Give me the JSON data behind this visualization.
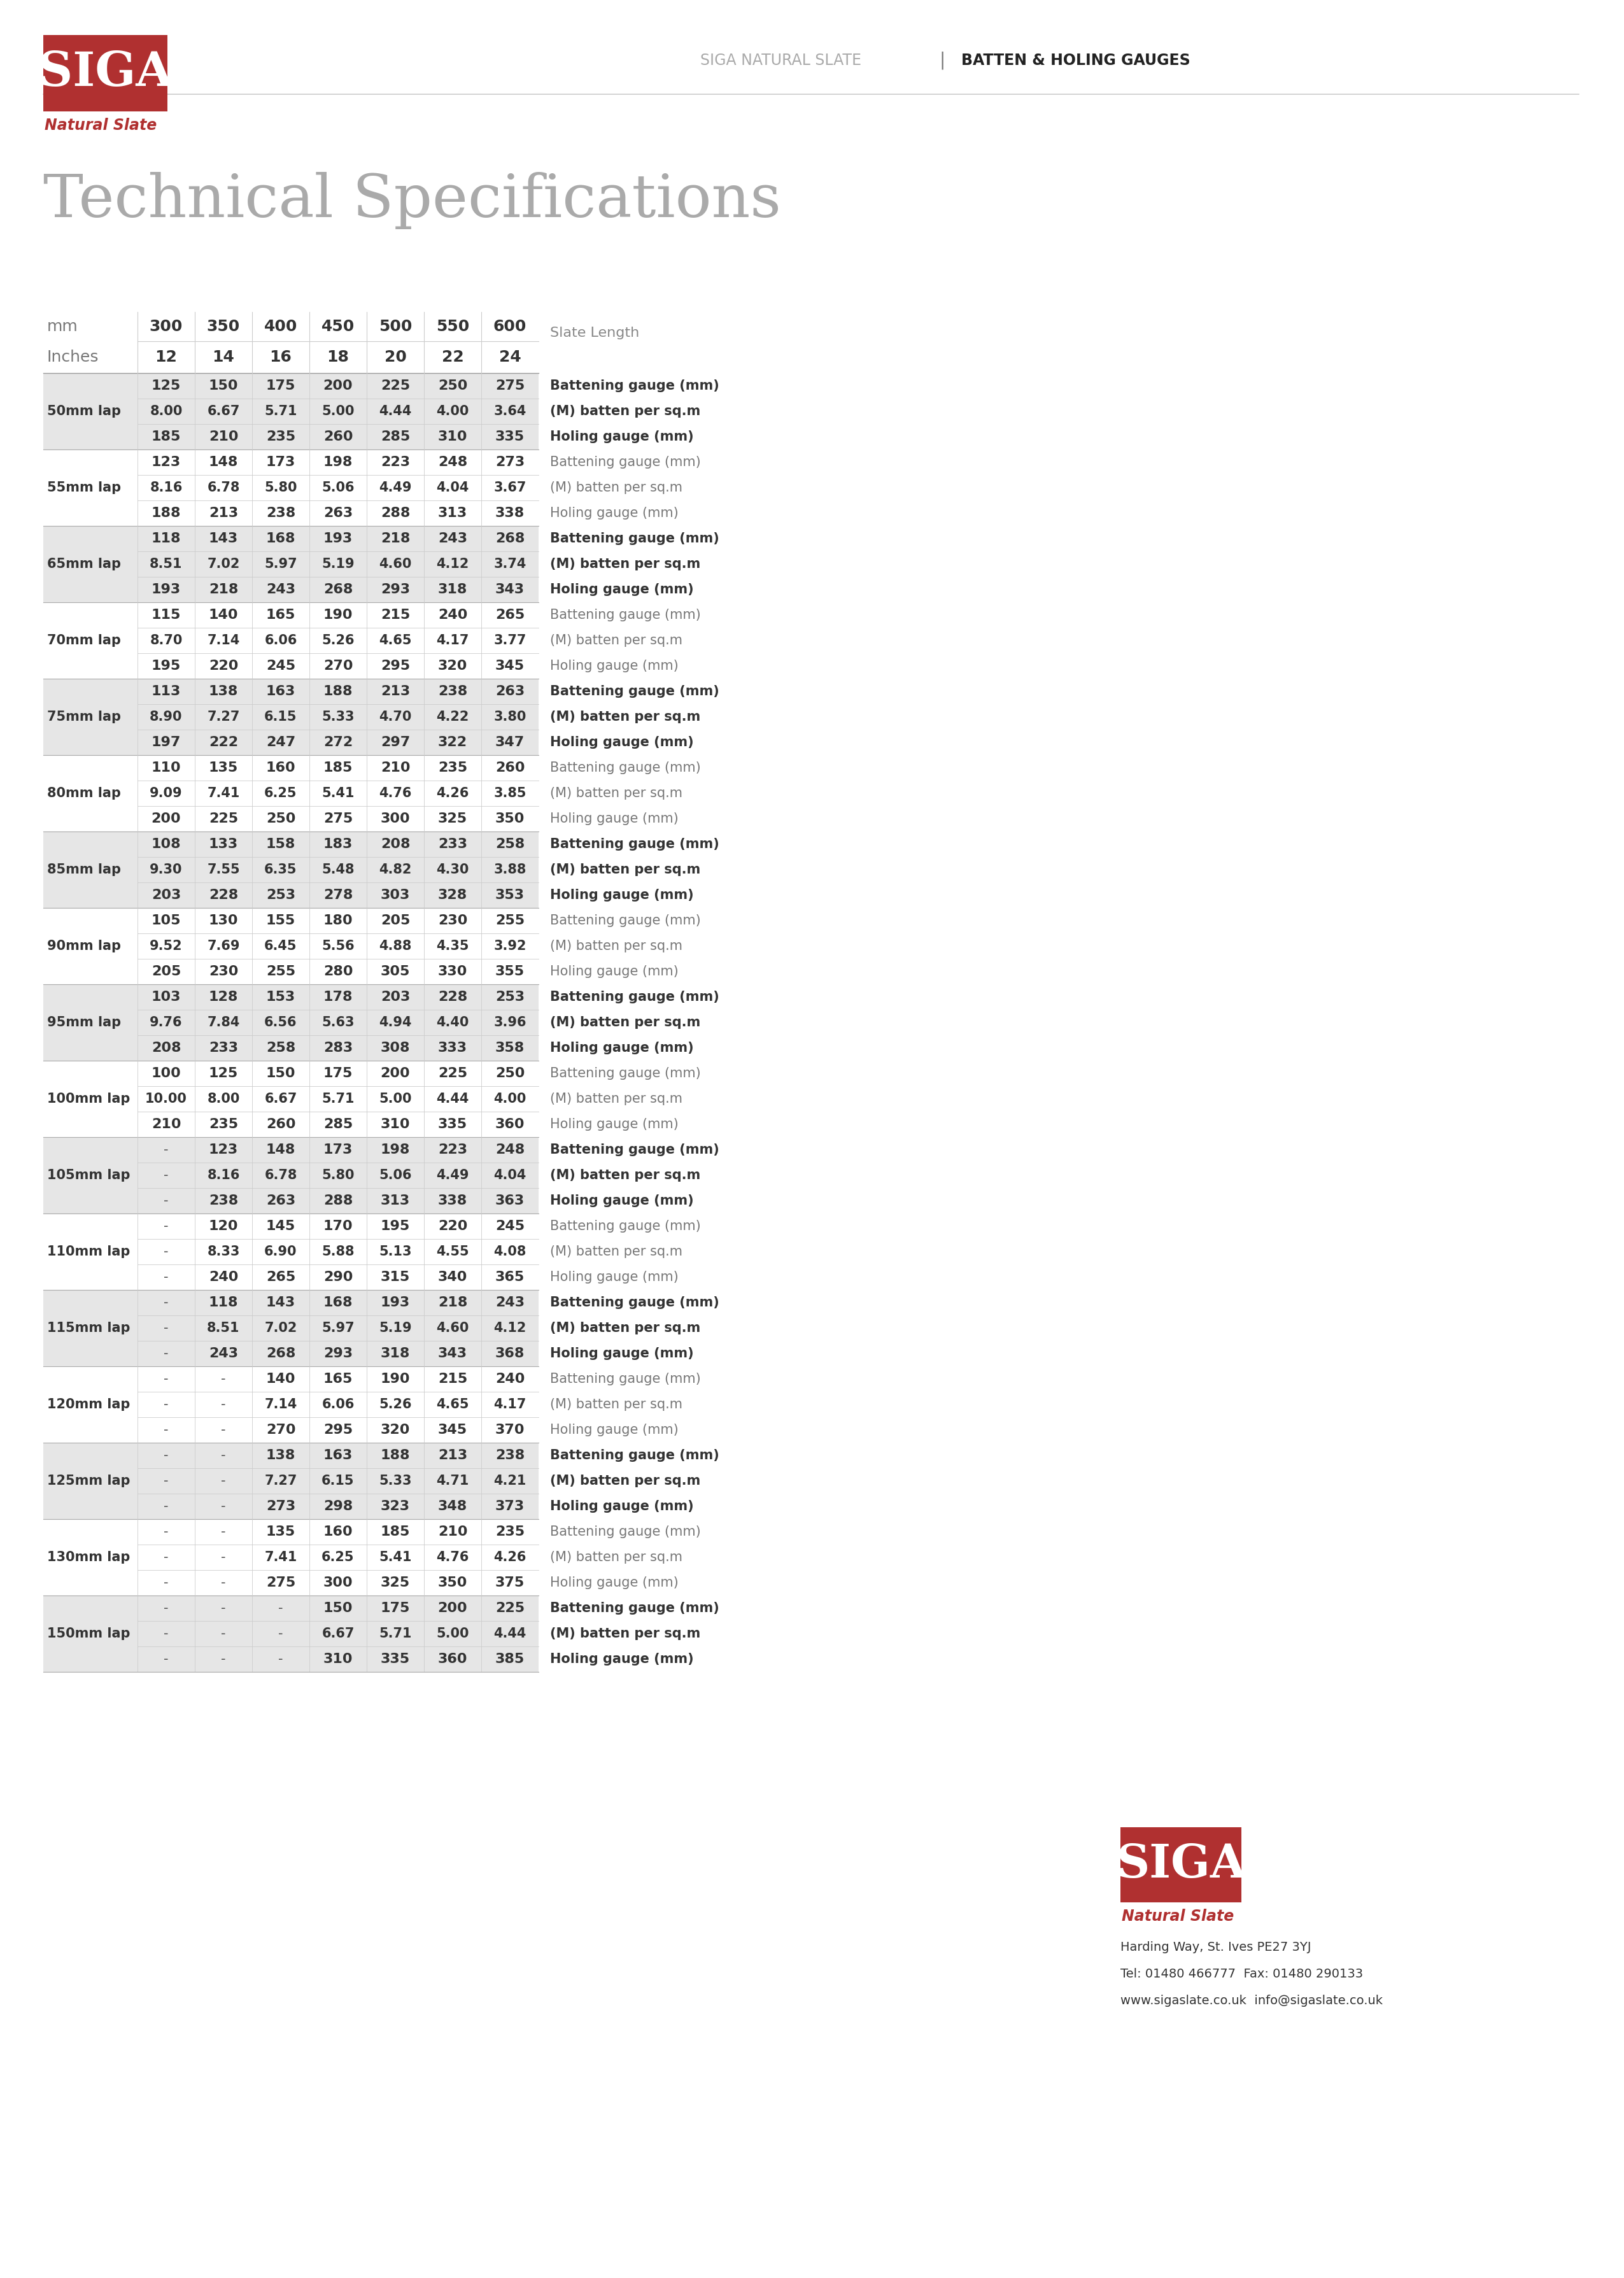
{
  "title": "Technical Specifications",
  "laps": [
    {
      "label": "50mm lap",
      "rows": [
        [
          "",
          "125",
          "150",
          "175",
          "200",
          "225",
          "250",
          "275",
          "Battening gauge (mm)"
        ],
        [
          "50mm lap",
          "8.00",
          "6.67",
          "5.71",
          "5.00",
          "4.44",
          "4.00",
          "3.64",
          "(M) batten per sq.m"
        ],
        [
          "",
          "185",
          "210",
          "235",
          "260",
          "285",
          "310",
          "335",
          "Holing gauge (mm)"
        ]
      ],
      "shaded": true
    },
    {
      "label": "55mm lap",
      "rows": [
        [
          "",
          "123",
          "148",
          "173",
          "198",
          "223",
          "248",
          "273",
          "Battening gauge (mm)"
        ],
        [
          "55mm lap",
          "8.16",
          "6.78",
          "5.80",
          "5.06",
          "4.49",
          "4.04",
          "3.67",
          "(M) batten per sq.m"
        ],
        [
          "",
          "188",
          "213",
          "238",
          "263",
          "288",
          "313",
          "338",
          "Holing gauge (mm)"
        ]
      ],
      "shaded": false
    },
    {
      "label": "65mm lap",
      "rows": [
        [
          "",
          "118",
          "143",
          "168",
          "193",
          "218",
          "243",
          "268",
          "Battening gauge (mm)"
        ],
        [
          "65mm lap",
          "8.51",
          "7.02",
          "5.97",
          "5.19",
          "4.60",
          "4.12",
          "3.74",
          "(M) batten per sq.m"
        ],
        [
          "",
          "193",
          "218",
          "243",
          "268",
          "293",
          "318",
          "343",
          "Holing gauge (mm)"
        ]
      ],
      "shaded": true
    },
    {
      "label": "70mm lap",
      "rows": [
        [
          "",
          "115",
          "140",
          "165",
          "190",
          "215",
          "240",
          "265",
          "Battening gauge (mm)"
        ],
        [
          "70mm lap",
          "8.70",
          "7.14",
          "6.06",
          "5.26",
          "4.65",
          "4.17",
          "3.77",
          "(M) batten per sq.m"
        ],
        [
          "",
          "195",
          "220",
          "245",
          "270",
          "295",
          "320",
          "345",
          "Holing gauge (mm)"
        ]
      ],
      "shaded": false
    },
    {
      "label": "75mm lap",
      "rows": [
        [
          "",
          "113",
          "138",
          "163",
          "188",
          "213",
          "238",
          "263",
          "Battening gauge (mm)"
        ],
        [
          "75mm lap",
          "8.90",
          "7.27",
          "6.15",
          "5.33",
          "4.70",
          "4.22",
          "3.80",
          "(M) batten per sq.m"
        ],
        [
          "",
          "197",
          "222",
          "247",
          "272",
          "297",
          "322",
          "347",
          "Holing gauge (mm)"
        ]
      ],
      "shaded": true
    },
    {
      "label": "80mm lap",
      "rows": [
        [
          "",
          "110",
          "135",
          "160",
          "185",
          "210",
          "235",
          "260",
          "Battening gauge (mm)"
        ],
        [
          "80mm lap",
          "9.09",
          "7.41",
          "6.25",
          "5.41",
          "4.76",
          "4.26",
          "3.85",
          "(M) batten per sq.m"
        ],
        [
          "",
          "200",
          "225",
          "250",
          "275",
          "300",
          "325",
          "350",
          "Holing gauge (mm)"
        ]
      ],
      "shaded": false
    },
    {
      "label": "85mm lap",
      "rows": [
        [
          "",
          "108",
          "133",
          "158",
          "183",
          "208",
          "233",
          "258",
          "Battening gauge (mm)"
        ],
        [
          "85mm lap",
          "9.30",
          "7.55",
          "6.35",
          "5.48",
          "4.82",
          "4.30",
          "3.88",
          "(M) batten per sq.m"
        ],
        [
          "",
          "203",
          "228",
          "253",
          "278",
          "303",
          "328",
          "353",
          "Holing gauge (mm)"
        ]
      ],
      "shaded": true
    },
    {
      "label": "90mm lap",
      "rows": [
        [
          "",
          "105",
          "130",
          "155",
          "180",
          "205",
          "230",
          "255",
          "Battening gauge (mm)"
        ],
        [
          "90mm lap",
          "9.52",
          "7.69",
          "6.45",
          "5.56",
          "4.88",
          "4.35",
          "3.92",
          "(M) batten per sq.m"
        ],
        [
          "",
          "205",
          "230",
          "255",
          "280",
          "305",
          "330",
          "355",
          "Holing gauge (mm)"
        ]
      ],
      "shaded": false
    },
    {
      "label": "95mm lap",
      "rows": [
        [
          "",
          "103",
          "128",
          "153",
          "178",
          "203",
          "228",
          "253",
          "Battening gauge (mm)"
        ],
        [
          "95mm lap",
          "9.76",
          "7.84",
          "6.56",
          "5.63",
          "4.94",
          "4.40",
          "3.96",
          "(M) batten per sq.m"
        ],
        [
          "",
          "208",
          "233",
          "258",
          "283",
          "308",
          "333",
          "358",
          "Holing gauge (mm)"
        ]
      ],
      "shaded": true
    },
    {
      "label": "100mm lap",
      "rows": [
        [
          "",
          "100",
          "125",
          "150",
          "175",
          "200",
          "225",
          "250",
          "Battening gauge (mm)"
        ],
        [
          "100mm lap",
          "10.00",
          "8.00",
          "6.67",
          "5.71",
          "5.00",
          "4.44",
          "4.00",
          "(M) batten per sq.m"
        ],
        [
          "",
          "210",
          "235",
          "260",
          "285",
          "310",
          "335",
          "360",
          "Holing gauge (mm)"
        ]
      ],
      "shaded": false
    },
    {
      "label": "105mm lap",
      "rows": [
        [
          "",
          "-",
          "123",
          "148",
          "173",
          "198",
          "223",
          "248",
          "Battening gauge (mm)"
        ],
        [
          "105mm lap",
          "-",
          "8.16",
          "6.78",
          "5.80",
          "5.06",
          "4.49",
          "4.04",
          "(M) batten per sq.m"
        ],
        [
          "",
          "-",
          "238",
          "263",
          "288",
          "313",
          "338",
          "363",
          "Holing gauge (mm)"
        ]
      ],
      "shaded": true
    },
    {
      "label": "110mm lap",
      "rows": [
        [
          "",
          "-",
          "120",
          "145",
          "170",
          "195",
          "220",
          "245",
          "Battening gauge (mm)"
        ],
        [
          "110mm lap",
          "-",
          "8.33",
          "6.90",
          "5.88",
          "5.13",
          "4.55",
          "4.08",
          "(M) batten per sq.m"
        ],
        [
          "",
          "-",
          "240",
          "265",
          "290",
          "315",
          "340",
          "365",
          "Holing gauge (mm)"
        ]
      ],
      "shaded": false
    },
    {
      "label": "115mm lap",
      "rows": [
        [
          "",
          "-",
          "118",
          "143",
          "168",
          "193",
          "218",
          "243",
          "Battening gauge (mm)"
        ],
        [
          "115mm lap",
          "-",
          "8.51",
          "7.02",
          "5.97",
          "5.19",
          "4.60",
          "4.12",
          "(M) batten per sq.m"
        ],
        [
          "",
          "-",
          "243",
          "268",
          "293",
          "318",
          "343",
          "368",
          "Holing gauge (mm)"
        ]
      ],
      "shaded": true
    },
    {
      "label": "120mm lap",
      "rows": [
        [
          "",
          "-",
          "-",
          "140",
          "165",
          "190",
          "215",
          "240",
          "Battening gauge (mm)"
        ],
        [
          "120mm lap",
          "-",
          "-",
          "7.14",
          "6.06",
          "5.26",
          "4.65",
          "4.17",
          "(M) batten per sq.m"
        ],
        [
          "",
          "-",
          "-",
          "270",
          "295",
          "320",
          "345",
          "370",
          "Holing gauge (mm)"
        ]
      ],
      "shaded": false
    },
    {
      "label": "125mm lap",
      "rows": [
        [
          "",
          "-",
          "-",
          "138",
          "163",
          "188",
          "213",
          "238",
          "Battening gauge (mm)"
        ],
        [
          "125mm lap",
          "-",
          "-",
          "7.27",
          "6.15",
          "5.33",
          "4.71",
          "4.21",
          "(M) batten per sq.m"
        ],
        [
          "",
          "-",
          "-",
          "273",
          "298",
          "323",
          "348",
          "373",
          "Holing gauge (mm)"
        ]
      ],
      "shaded": true
    },
    {
      "label": "130mm lap",
      "rows": [
        [
          "",
          "-",
          "-",
          "135",
          "160",
          "185",
          "210",
          "235",
          "Battening gauge (mm)"
        ],
        [
          "130mm lap",
          "-",
          "-",
          "7.41",
          "6.25",
          "5.41",
          "4.76",
          "4.26",
          "(M) batten per sq.m"
        ],
        [
          "",
          "-",
          "-",
          "275",
          "300",
          "325",
          "350",
          "375",
          "Holing gauge (mm)"
        ]
      ],
      "shaded": false
    },
    {
      "label": "150mm lap",
      "rows": [
        [
          "",
          "-",
          "-",
          "-",
          "150",
          "175",
          "200",
          "225",
          "Battening gauge (mm)"
        ],
        [
          "150mm lap",
          "-",
          "-",
          "-",
          "6.67",
          "5.71",
          "5.00",
          "4.44",
          "(M) batten per sq.m"
        ],
        [
          "",
          "-",
          "-",
          "-",
          "310",
          "335",
          "360",
          "385",
          "Holing gauge (mm)"
        ]
      ],
      "shaded": true
    }
  ],
  "bg_color": "#ffffff",
  "shaded_color": "#e6e6e6",
  "unshaded_color": "#ffffff",
  "red_color": "#b03030",
  "contact_line1": "Harding Way, St. Ives PE27 3YJ",
  "contact_line2": "Tel: 01480 466777  Fax: 01480 290133",
  "contact_line3": "www.sigaslate.co.uk  info@sigaslate.co.uk"
}
